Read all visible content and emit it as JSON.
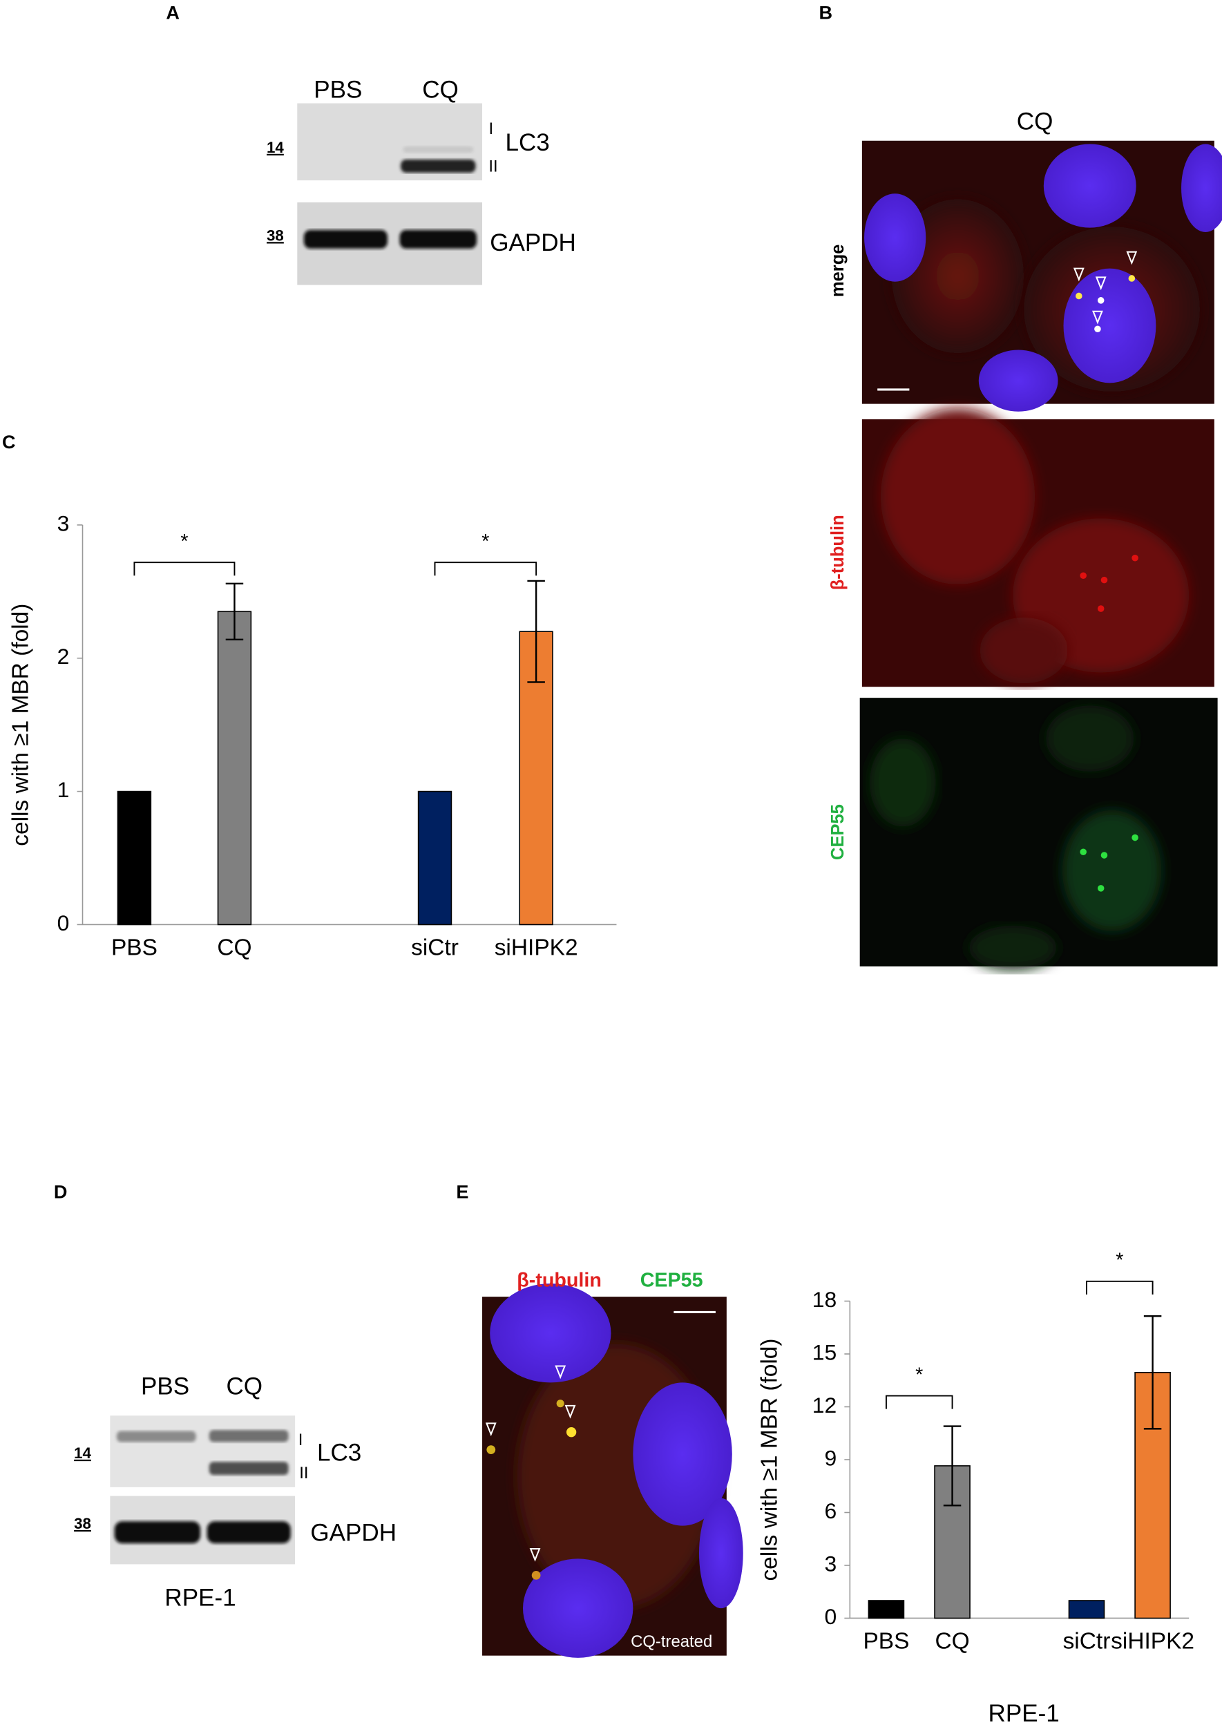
{
  "panels": {
    "A": {
      "letter": "A",
      "lanes": [
        "PBS",
        "CQ"
      ],
      "markers": [
        "14",
        "38"
      ],
      "protein_top": "LC3",
      "form_1": "I",
      "form_2": "II",
      "protein_bottom": "GAPDH"
    },
    "B": {
      "letter": "B",
      "title": "CQ",
      "channels": [
        "merge",
        "β-tubulin",
        "CEP55"
      ]
    },
    "C": {
      "letter": "C"
    },
    "D": {
      "letter": "D",
      "lanes": [
        "PBS",
        "CQ"
      ],
      "markers": [
        "14",
        "38"
      ],
      "protein_top": "LC3",
      "form_1": "I",
      "form_2": "II",
      "protein_bottom": "GAPDH",
      "cell_line": "RPE-1"
    },
    "E": {
      "letter": "E",
      "stain_1": "β-tubulin",
      "stain_2": "CEP55",
      "treatment": "CQ-treated"
    }
  },
  "chart_data": [
    {
      "type": "bar",
      "ylabel": "cells with ≥1 MBR (fold)",
      "categories": [
        "PBS",
        "CQ",
        "siCtr",
        "siHIPK2"
      ],
      "values": [
        1,
        2.35,
        1,
        2.2
      ],
      "errors": [
        null,
        0.21,
        null,
        0.38
      ],
      "colors": [
        "#000000",
        "#808080",
        "#002060",
        "#ed7d31"
      ],
      "ylim": [
        0,
        3
      ],
      "yticks": [
        0,
        1,
        2,
        3
      ],
      "significance": [
        "*",
        "*"
      ]
    },
    {
      "type": "bar",
      "ylabel": "cells with ≥1 MBR (fold)",
      "xlabel": "RPE-1",
      "categories": [
        "PBS",
        "CQ",
        "siCtr",
        "siHIPK2"
      ],
      "values": [
        1,
        8.65,
        1,
        13.95
      ],
      "errors": [
        null,
        2.25,
        null,
        3.2
      ],
      "colors": [
        "#000000",
        "#808080",
        "#002060",
        "#ed7d31"
      ],
      "ylim": [
        0,
        18
      ],
      "yticks": [
        0,
        3,
        6,
        9,
        12,
        15,
        18
      ],
      "significance": [
        "*",
        "*"
      ]
    }
  ]
}
